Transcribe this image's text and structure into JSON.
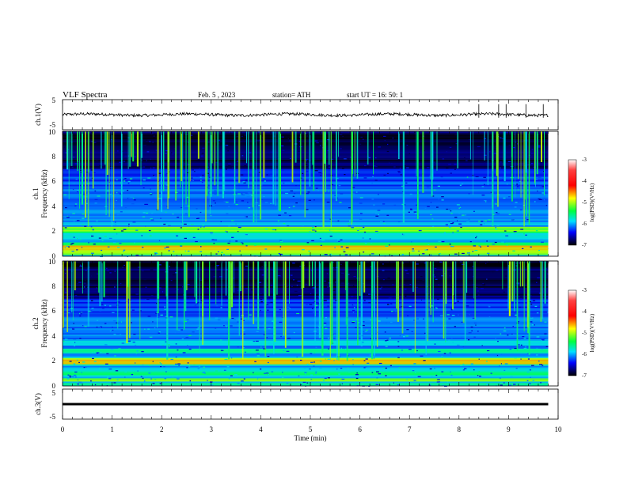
{
  "header": {
    "title": "VLF  Spectra",
    "date": "Feb. 5  , 2023",
    "station": "station= ATH",
    "start": "start  UT  =    16: 50: 1"
  },
  "colors": {
    "background": "#ffffff",
    "axis": "#000000",
    "spectrogram_low": "#000000",
    "spectrogram_mid": "#0000c8",
    "spectrogram_high": "#00c8b4"
  },
  "chart_data": [
    {
      "type": "line",
      "name": "ch1-waveform",
      "ylabel": "ch.1(V)",
      "ylim": [
        -5,
        5
      ],
      "yticks": [
        "5",
        "-5"
      ],
      "xlim": [
        0,
        10
      ],
      "baseline": 0,
      "noise_amplitude": 0.6,
      "spikes_at_min": [
        8.4,
        8.8,
        8.95,
        9.35,
        9.7
      ],
      "spike_height": 3.5
    },
    {
      "type": "heatmap",
      "name": "ch1-spectrogram",
      "ylabel": "ch.1",
      "ylabel2": "Frequency  (kHz)",
      "ylim": [
        0,
        10
      ],
      "yticks": [
        "0",
        "2",
        "4",
        "6",
        "8",
        "10"
      ],
      "xlim": [
        0,
        9.8
      ],
      "colorbar": {
        "label": "log(PSD)(V²/Hz)",
        "ticks": [
          "-3",
          "-4",
          "-5",
          "-6",
          "-7"
        ],
        "range": [
          -7,
          -3
        ]
      },
      "bands_khz": [
        {
          "f": 0.3,
          "level": -4.2
        },
        {
          "f": 0.7,
          "level": -4.0
        },
        {
          "f": 1.0,
          "level": -4.6
        },
        {
          "f": 1.5,
          "level": -4.8
        },
        {
          "f": 2.0,
          "level": -4.5
        },
        {
          "f": 2.2,
          "level": -4.3
        },
        {
          "f": 3.6,
          "level": -5.4
        },
        {
          "f": 4.8,
          "level": -5.6
        },
        {
          "f": 6.0,
          "level": -5.8
        }
      ]
    },
    {
      "type": "heatmap",
      "name": "ch2-spectrogram",
      "ylabel": "ch.2",
      "ylabel2": "Frequency  (kHz)",
      "ylim": [
        0,
        10
      ],
      "yticks": [
        "0",
        "2",
        "4",
        "6",
        "8",
        "10"
      ],
      "xlim": [
        0,
        9.8
      ],
      "colorbar": {
        "label": "log(PSD)(V²/Hz)",
        "ticks": [
          "-3",
          "-4",
          "-5",
          "-6",
          "-7"
        ],
        "range": [
          -7,
          -3
        ]
      },
      "bands_khz": [
        {
          "f": 0.5,
          "level": -4.3
        },
        {
          "f": 1.0,
          "level": -4.6
        },
        {
          "f": 1.9,
          "level": -4.0
        },
        {
          "f": 2.1,
          "level": -4.2
        },
        {
          "f": 2.8,
          "level": -4.7
        },
        {
          "f": 3.4,
          "level": -5.0
        },
        {
          "f": 4.0,
          "level": -5.3
        },
        {
          "f": 4.8,
          "level": -5.5
        }
      ]
    },
    {
      "type": "line",
      "name": "ch3-waveform",
      "ylabel": "ch.3(V)",
      "ylim": [
        -5,
        5
      ],
      "yticks": [
        "5",
        "-5"
      ],
      "xlim": [
        0,
        10
      ],
      "baseline": 0
    }
  ],
  "xaxis": {
    "label": "Time  (min)",
    "ticks": [
      "0",
      "1",
      "2",
      "3",
      "4",
      "5",
      "6",
      "7",
      "8",
      "9",
      "10"
    ],
    "range": [
      0,
      10
    ]
  }
}
